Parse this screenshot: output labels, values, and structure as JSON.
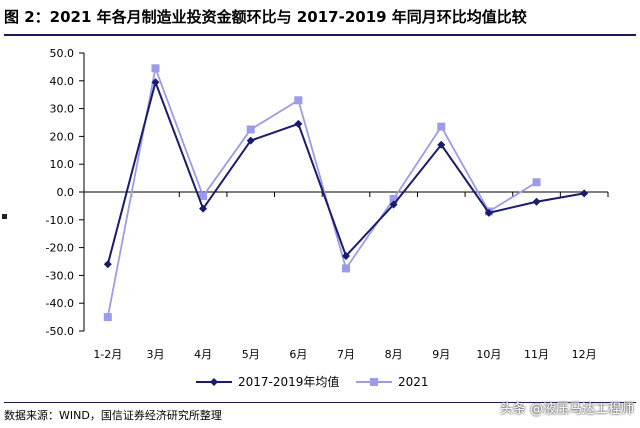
{
  "header": {
    "title": "图 2：2021 年各月制造业投资金额环比与 2017-2019 年同月环比均值比较"
  },
  "footer": {
    "source": "数据来源：WIND，国信证券经济研究所整理",
    "watermark": "头条 @液压马达工程师"
  },
  "chart_data": {
    "type": "line",
    "title": "",
    "xlabel": "",
    "ylabel": "",
    "categories": [
      "1-2月",
      "3月",
      "4月",
      "5月",
      "6月",
      "7月",
      "8月",
      "9月",
      "10月",
      "11月",
      "12月"
    ],
    "ylim": [
      -50,
      50
    ],
    "yticks": [
      "50.0",
      "40.0",
      "30.0",
      "20.0",
      "10.0",
      "0.0",
      "-10.0",
      "-20.0",
      "-30.0",
      "-40.0",
      "-50.0"
    ],
    "grid": false,
    "legend_position": "bottom",
    "series": [
      {
        "name": "2017-2019年均值",
        "color": "#1a1a6e",
        "marker": "diamond",
        "values": [
          -26.0,
          39.5,
          -6.0,
          18.5,
          24.5,
          -23.0,
          -4.5,
          17.0,
          -7.5,
          -3.5,
          -0.5
        ]
      },
      {
        "name": "2021",
        "color": "#9b9bea",
        "marker": "square",
        "values": [
          -45.0,
          44.5,
          -1.5,
          22.5,
          33.0,
          -27.5,
          -2.5,
          23.5,
          -7.0,
          3.5,
          null
        ]
      }
    ]
  }
}
